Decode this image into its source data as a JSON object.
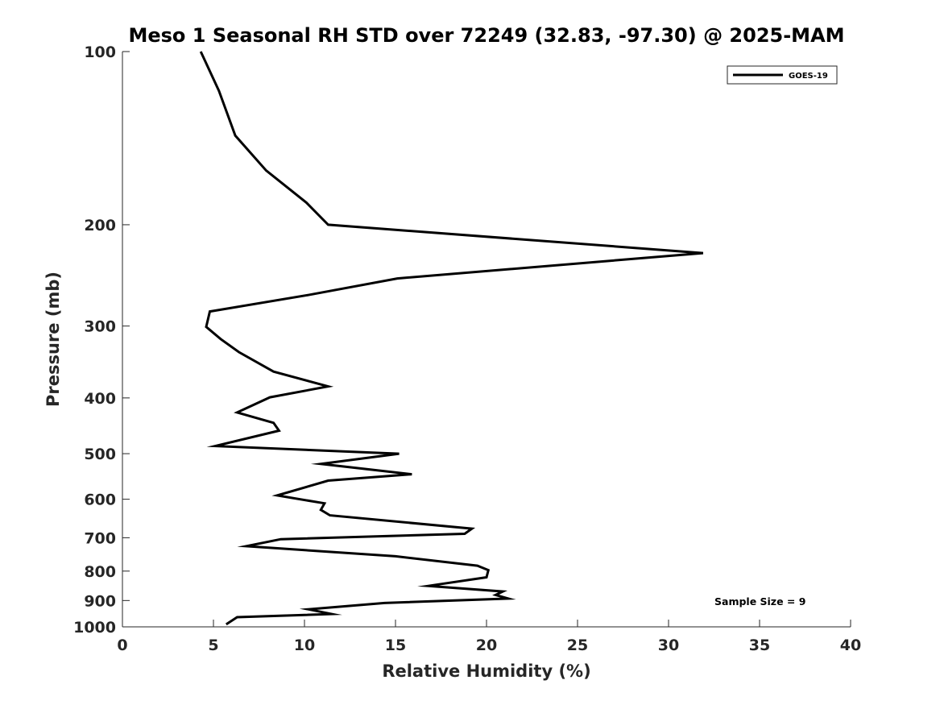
{
  "chart_data": {
    "type": "line",
    "title": "Meso 1 Seasonal RH STD over 72249 (32.83, -97.30) @ 2025-MAM",
    "xlabel": "Relative Humidity (%)",
    "ylabel": "Pressure (mb)",
    "xlim": [
      0,
      40
    ],
    "ylim": [
      1000,
      100
    ],
    "yscale": "log",
    "xticks": [
      0,
      5,
      10,
      15,
      20,
      25,
      30,
      35,
      40
    ],
    "yticks": [
      100,
      200,
      300,
      400,
      500,
      600,
      700,
      800,
      900,
      1000
    ],
    "legend_position": "top-right",
    "annotation": "Sample Size = 9",
    "series": [
      {
        "name": "GOES-19",
        "color": "#000000",
        "x": [
          4.3,
          5.3,
          6.2,
          7.9,
          10.1,
          11.3,
          31.9,
          15.1,
          10.2,
          4.8,
          4.6,
          5.4,
          6.4,
          8.3,
          11.3,
          8.1,
          6.3,
          8.3,
          8.6,
          5.1,
          15.2,
          10.9,
          15.9,
          11.3,
          8.5,
          11.1,
          10.9,
          11.4,
          19.2,
          18.8,
          8.7,
          6.8,
          15.0,
          19.5,
          20.1,
          20.0,
          16.8,
          20.9,
          20.5,
          21.2,
          14.4,
          10.2,
          11.5,
          6.3,
          5.7
        ],
        "y": [
          100,
          117,
          140,
          161,
          183,
          200,
          224,
          248,
          265,
          283,
          301,
          316,
          333,
          360,
          382,
          399,
          424,
          442,
          456,
          485,
          500,
          521,
          543,
          557,
          591,
          610,
          626,
          640,
          675,
          689,
          704,
          724,
          754,
          783,
          797,
          820,
          849,
          868,
          880,
          893,
          909,
          932,
          950,
          962,
          990
        ]
      }
    ]
  }
}
